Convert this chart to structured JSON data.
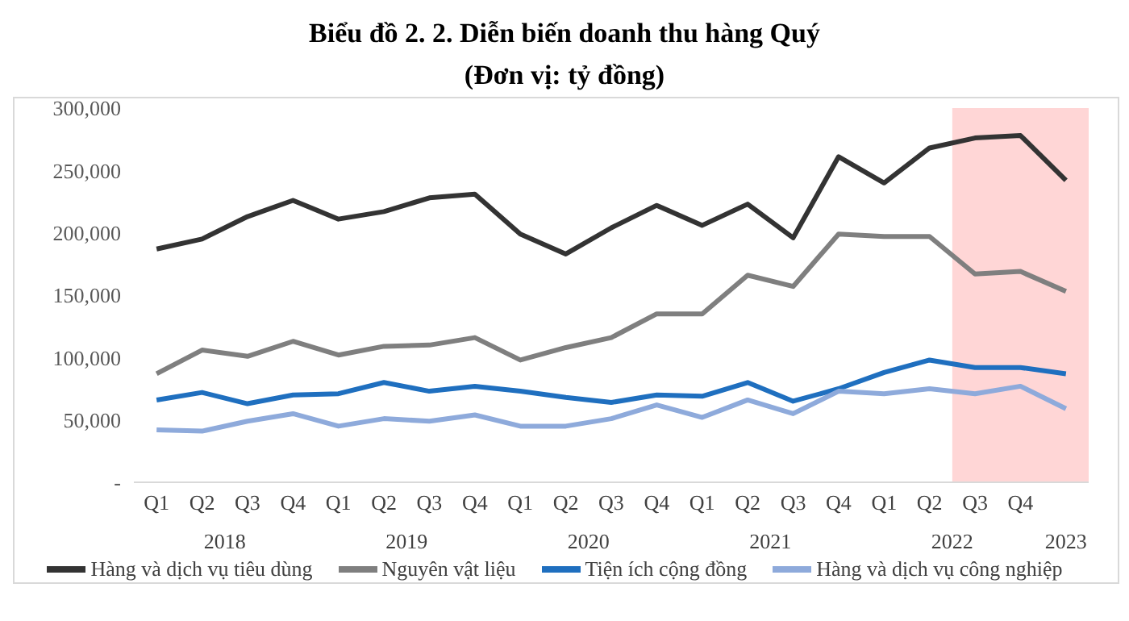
{
  "chart_data": {
    "type": "line",
    "title": "Biểu đồ 2. 2. Diễn biến doanh thu hàng Quý",
    "subtitle": "(Đơn vị: tỷ đồng)",
    "categories": [
      "Q1",
      "Q2",
      "Q3",
      "Q4",
      "Q1",
      "Q2",
      "Q3",
      "Q4",
      "Q1",
      "Q2",
      "Q3",
      "Q4",
      "Q1",
      "Q2",
      "Q3",
      "Q4",
      "Q1",
      "Q2",
      "Q3",
      "Q4",
      null
    ],
    "annotations": [
      "2018",
      "2019",
      "2020",
      "2021",
      "2022",
      "2023"
    ],
    "series": [
      {
        "name": "Hàng và dịch vụ tiêu dùng",
        "color": "#333333",
        "values": [
          187000,
          195000,
          213000,
          226000,
          211000,
          217000,
          228000,
          231000,
          199000,
          183000,
          204000,
          222000,
          206000,
          223000,
          196000,
          261000,
          240000,
          268000,
          276000,
          278000,
          242000
        ]
      },
      {
        "name": "Nguyên vật liệu",
        "color": "#7f7f7f",
        "values": [
          87000,
          106000,
          101000,
          113000,
          102000,
          109000,
          110000,
          116000,
          98000,
          108000,
          116000,
          135000,
          135000,
          166000,
          157000,
          199000,
          197000,
          197000,
          167000,
          169000,
          153000
        ]
      },
      {
        "name": "Tiện ích cộng đồng",
        "color": "#1f6fbf",
        "values": [
          66000,
          72000,
          63000,
          70000,
          71000,
          80000,
          73000,
          77000,
          73000,
          68000,
          64000,
          70000,
          69000,
          80000,
          65000,
          75000,
          88000,
          98000,
          92000,
          92000,
          87000
        ]
      },
      {
        "name": "Hàng và dịch vụ công nghiệp",
        "color": "#8eaadb",
        "values": [
          42000,
          41000,
          49000,
          55000,
          45000,
          51000,
          49000,
          54000,
          45000,
          45000,
          51000,
          62000,
          52000,
          66000,
          55000,
          73000,
          71000,
          75000,
          71000,
          77000,
          59000
        ]
      }
    ],
    "ylim": [
      0,
      300000
    ],
    "yticks": [
      {
        "value": 0,
        "label": "-"
      },
      {
        "value": 50000,
        "label": "50,000"
      },
      {
        "value": 100000,
        "label": "100,000"
      },
      {
        "value": 150000,
        "label": "150,000"
      },
      {
        "value": 200000,
        "label": "200,000"
      },
      {
        "value": 250000,
        "label": "250,000"
      },
      {
        "value": 300000,
        "label": "300,000"
      }
    ],
    "grid": false,
    "legend": "bottom",
    "marker": "none",
    "line_style": "solid"
  }
}
